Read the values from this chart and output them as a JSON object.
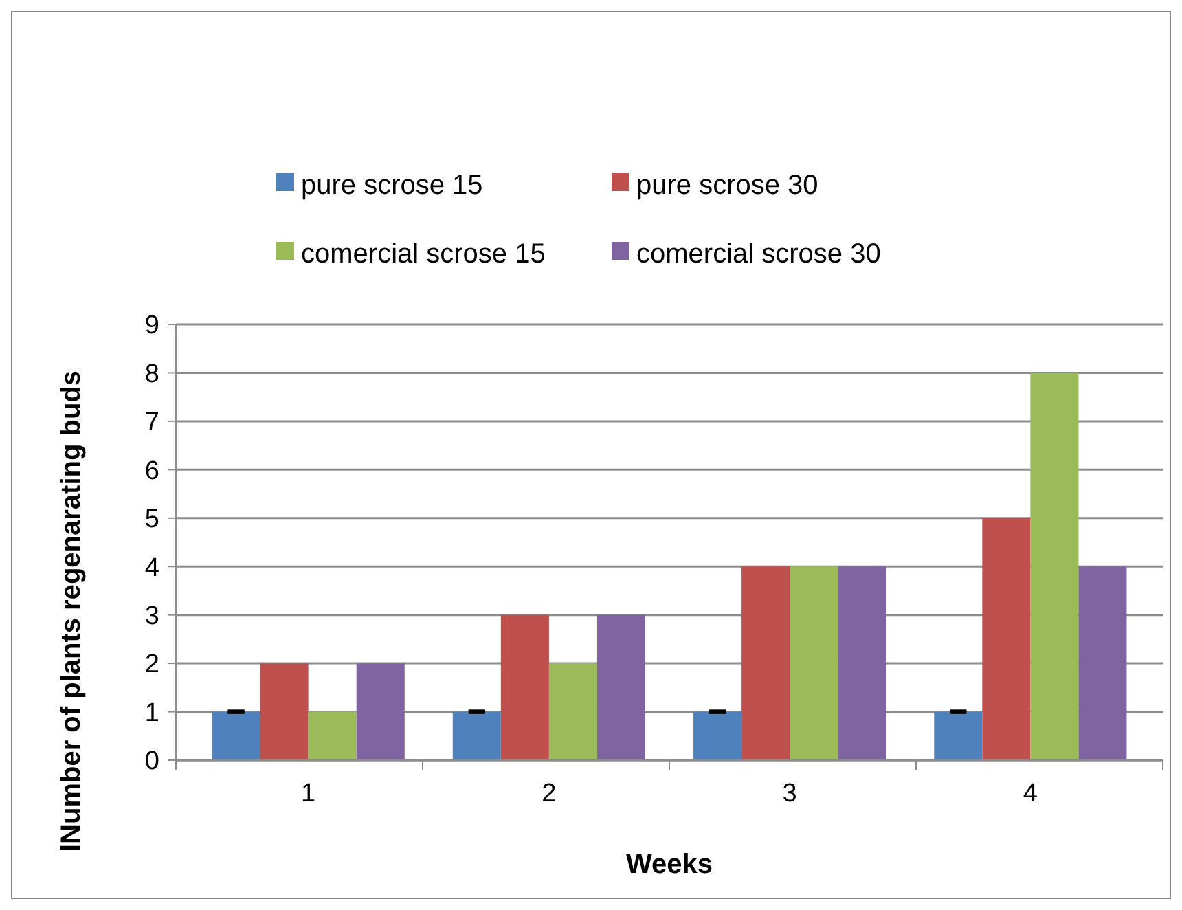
{
  "chart_data": {
    "type": "bar",
    "xlabel": "Weeks",
    "ylabel": "lNumber of plants regenarating buds",
    "categories": [
      "1",
      "2",
      "3",
      "4"
    ],
    "series": [
      {
        "name": "pure scrose 15",
        "color": "#4f81bd",
        "values": [
          1,
          1,
          1,
          1
        ],
        "errors": [
          0,
          0,
          0,
          0
        ]
      },
      {
        "name": "pure scrose  30",
        "color": "#c0504d",
        "values": [
          2,
          3,
          4,
          5
        ]
      },
      {
        "name": "comercial scrose 15",
        "color": "#9bbb59",
        "values": [
          1,
          2,
          4,
          8
        ]
      },
      {
        "name": "comercial scrose 30",
        "color": "#8064a2",
        "values": [
          2,
          3,
          4,
          4
        ]
      }
    ],
    "ylim": [
      0,
      9
    ],
    "yticks": [
      0,
      1,
      2,
      3,
      4,
      5,
      6,
      7,
      8,
      9
    ],
    "grid": "y",
    "legend": "top"
  }
}
